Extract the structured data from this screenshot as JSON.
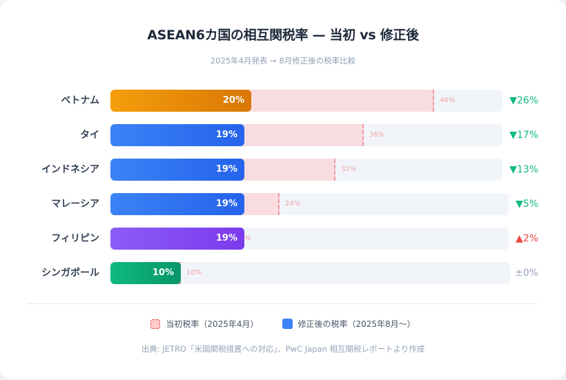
{
  "header": {
    "title": "ASEAN6カ国の相互関税率 — 当初 vs 修正後",
    "subtitle": "2025年4月発表 → 8月修正後の税率比較"
  },
  "chart_data": {
    "type": "bar",
    "orientation": "horizontal",
    "title": "ASEAN6カ国の相互関税率 — 当初 vs 修正後",
    "subtitle": "2025年4月発表 → 8月修正後の税率比較",
    "categories": [
      "ベトナム",
      "タイ",
      "インドネシア",
      "マレーシア",
      "フィリピン",
      "シンガポール"
    ],
    "series": [
      {
        "name": "当初税率（2025年4月）",
        "values": [
          46,
          36,
          32,
          24,
          17,
          10
        ],
        "color": "#f8dcdf"
      },
      {
        "name": "修正後の税率（2025年8月～）",
        "values": [
          20,
          19,
          19,
          19,
          19,
          10
        ],
        "color": "#3b82f6"
      }
    ],
    "changes": [
      "▼26%",
      "▼17%",
      "▼13%",
      "▼5%",
      "▲2%",
      "±0%"
    ],
    "unit": "%",
    "legend_position": "bottom",
    "grid": false
  },
  "rows": [
    {
      "country": "ベトナム",
      "initial": 46,
      "initial_label": "46%",
      "revised": 20,
      "revised_label": "20%",
      "delta": "▼26%",
      "delta_color": "#10b981",
      "bar_from": "#f59e0b",
      "bar_to": "#d97706",
      "track_w": 568
    },
    {
      "country": "タイ",
      "initial": 36,
      "initial_label": "36%",
      "revised": 19,
      "revised_label": "19%",
      "delta": "▼17%",
      "delta_color": "#10b981",
      "bar_from": "#3b82f6",
      "bar_to": "#2563eb",
      "track_w": 568
    },
    {
      "country": "インドネシア",
      "initial": 32,
      "initial_label": "32%",
      "revised": 19,
      "revised_label": "19%",
      "delta": "▼13%",
      "delta_color": "#10b981",
      "bar_from": "#3b82f6",
      "bar_to": "#2563eb",
      "track_w": 568
    },
    {
      "country": "マレーシア",
      "initial": 24,
      "initial_label": "24%",
      "revised": 19,
      "revised_label": "19%",
      "delta": "▼5%",
      "delta_color": "#10b981",
      "bar_from": "#3b82f6",
      "bar_to": "#2563eb",
      "track_w": 577
    },
    {
      "country": "フィリピン",
      "initial": 17,
      "initial_label": "17%",
      "revised": 19,
      "revised_label": "19%",
      "delta": "▲2%",
      "delta_color": "#ef4444",
      "bar_from": "#8b5cf6",
      "bar_to": "#7c3aed",
      "track_w": 577
    },
    {
      "country": "シンガポール",
      "initial": 10,
      "initial_label": "10%",
      "revised": 10,
      "revised_label": "10%",
      "delta": "±0%",
      "delta_color": "#94a3b8",
      "bar_from": "#10b981",
      "bar_to": "#059669",
      "track_w": 579
    }
  ],
  "legend": {
    "initial": "当初税率（2025年4月）",
    "revised": "修正後の税率（2025年8月～）"
  },
  "source": "出典: JETRO「米国関税措置への対応」、PwC Japan 相互関税レポートより作成"
}
